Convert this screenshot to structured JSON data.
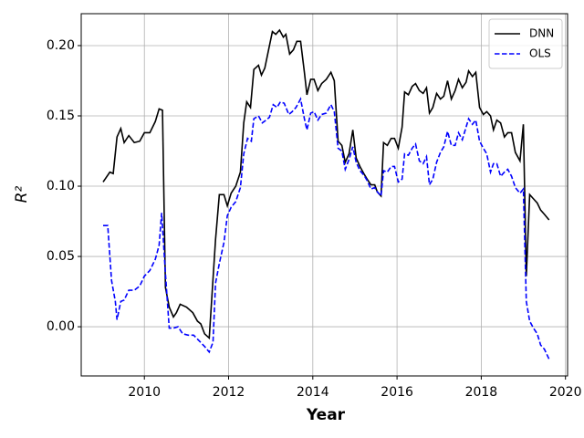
{
  "chart_data": {
    "type": "line",
    "x_label": "Year",
    "y_label": "R²",
    "xlim": [
      2008.5,
      2020.05
    ],
    "ylim": [
      -0.035,
      0.2227
    ],
    "xticks": [
      2010,
      2012,
      2014,
      2016,
      2018,
      2020
    ],
    "yticks": [
      {
        "value": 0,
        "label": "0.00"
      },
      0.05,
      {
        "value": 0.1,
        "label": "0.10"
      },
      0.15,
      {
        "value": 0.2,
        "label": "0.20"
      }
    ],
    "grid": true,
    "legend": "upper right",
    "series": [
      {
        "name": "DNN",
        "color": "#000000",
        "dash": false,
        "x": [
          2009.02,
          2009.18,
          2009.26,
          2009.35,
          2009.44,
          2009.52,
          2009.63,
          2009.76,
          2009.89,
          2010.0,
          2010.13,
          2010.26,
          2010.35,
          2010.43,
          2010.5,
          2010.59,
          2010.69,
          2010.76,
          2010.85,
          2011.0,
          2011.15,
          2011.26,
          2011.34,
          2011.43,
          2011.54,
          2011.63,
          2011.69,
          2011.78,
          2011.89,
          2011.97,
          2012.06,
          2012.17,
          2012.28,
          2012.36,
          2012.43,
          2012.52,
          2012.6,
          2012.71,
          2012.78,
          2012.86,
          2012.95,
          2013.04,
          2013.12,
          2013.21,
          2013.3,
          2013.36,
          2013.45,
          2013.54,
          2013.62,
          2013.71,
          2013.8,
          2013.86,
          2013.95,
          2014.03,
          2014.12,
          2014.21,
          2014.32,
          2014.43,
          2014.51,
          2014.6,
          2014.69,
          2014.77,
          2014.86,
          2014.95,
          2015.03,
          2015.12,
          2015.21,
          2015.29,
          2015.38,
          2015.47,
          2015.53,
          2015.62,
          2015.68,
          2015.77,
          2015.86,
          2015.94,
          2016.03,
          2016.12,
          2016.18,
          2016.27,
          2016.36,
          2016.44,
          2016.53,
          2016.62,
          2016.7,
          2016.77,
          2016.85,
          2016.94,
          2017.03,
          2017.11,
          2017.2,
          2017.29,
          2017.38,
          2017.46,
          2017.55,
          2017.64,
          2017.7,
          2017.79,
          2017.87,
          2017.96,
          2018.05,
          2018.13,
          2018.22,
          2018.29,
          2018.37,
          2018.46,
          2018.55,
          2018.63,
          2018.72,
          2018.81,
          2018.92,
          2019.0,
          2019.07,
          2019.15,
          2019.24,
          2019.33,
          2019.41,
          2019.5,
          2019.61
        ],
        "values": [
          0.103,
          0.11,
          0.109,
          0.135,
          0.141,
          0.131,
          0.136,
          0.131,
          0.132,
          0.138,
          0.138,
          0.146,
          0.155,
          0.154,
          0.028,
          0.014,
          0.007,
          0.01,
          0.016,
          0.014,
          0.01,
          0.004,
          0.002,
          -0.005,
          -0.008,
          0.034,
          0.062,
          0.094,
          0.094,
          0.086,
          0.095,
          0.1,
          0.11,
          0.145,
          0.16,
          0.156,
          0.183,
          0.186,
          0.179,
          0.184,
          0.197,
          0.21,
          0.208,
          0.211,
          0.206,
          0.208,
          0.194,
          0.197,
          0.203,
          0.203,
          0.181,
          0.165,
          0.176,
          0.176,
          0.168,
          0.173,
          0.176,
          0.181,
          0.175,
          0.132,
          0.129,
          0.117,
          0.123,
          0.14,
          0.12,
          0.114,
          0.109,
          0.105,
          0.101,
          0.101,
          0.096,
          0.093,
          0.131,
          0.129,
          0.134,
          0.134,
          0.127,
          0.142,
          0.167,
          0.165,
          0.171,
          0.173,
          0.168,
          0.166,
          0.17,
          0.152,
          0.156,
          0.166,
          0.162,
          0.164,
          0.175,
          0.162,
          0.168,
          0.176,
          0.17,
          0.174,
          0.182,
          0.178,
          0.181,
          0.156,
          0.151,
          0.153,
          0.15,
          0.14,
          0.147,
          0.145,
          0.135,
          0.138,
          0.138,
          0.124,
          0.118,
          0.144,
          0.036,
          0.094,
          0.091,
          0.088,
          0.083,
          0.08,
          0.076
        ]
      },
      {
        "name": "OLS",
        "color": "#0000ff",
        "dash": true,
        "x": [
          2009.02,
          2009.13,
          2009.22,
          2009.31,
          2009.35,
          2009.44,
          2009.52,
          2009.63,
          2009.76,
          2009.89,
          2010.0,
          2010.13,
          2010.26,
          2010.35,
          2010.41,
          2010.5,
          2010.59,
          2010.69,
          2010.8,
          2010.91,
          2011.04,
          2011.17,
          2011.3,
          2011.43,
          2011.54,
          2011.63,
          2011.69,
          2011.78,
          2011.89,
          2011.97,
          2012.06,
          2012.17,
          2012.28,
          2012.36,
          2012.45,
          2012.54,
          2012.6,
          2012.71,
          2012.8,
          2012.89,
          2012.97,
          2013.06,
          2013.15,
          2013.23,
          2013.32,
          2013.43,
          2013.51,
          2013.6,
          2013.71,
          2013.8,
          2013.86,
          2013.95,
          2014.03,
          2014.12,
          2014.21,
          2014.32,
          2014.43,
          2014.51,
          2014.6,
          2014.69,
          2014.77,
          2014.86,
          2014.95,
          2015.03,
          2015.12,
          2015.21,
          2015.29,
          2015.38,
          2015.47,
          2015.53,
          2015.62,
          2015.68,
          2015.77,
          2015.86,
          2015.94,
          2016.03,
          2016.12,
          2016.18,
          2016.27,
          2016.36,
          2016.44,
          2016.53,
          2016.62,
          2016.7,
          2016.77,
          2016.85,
          2016.94,
          2017.03,
          2017.11,
          2017.2,
          2017.29,
          2017.38,
          2017.46,
          2017.55,
          2017.64,
          2017.7,
          2017.79,
          2017.87,
          2017.96,
          2018.05,
          2018.13,
          2018.22,
          2018.29,
          2018.37,
          2018.46,
          2018.55,
          2018.63,
          2018.72,
          2018.81,
          2018.92,
          2019.0,
          2019.07,
          2019.15,
          2019.24,
          2019.33,
          2019.41,
          2019.5,
          2019.61
        ],
        "values": [
          0.072,
          0.072,
          0.033,
          0.018,
          0.005,
          0.018,
          0.019,
          0.026,
          0.026,
          0.029,
          0.036,
          0.04,
          0.048,
          0.058,
          0.081,
          0.038,
          -0.001,
          -0.001,
          0.0,
          -0.005,
          -0.006,
          -0.006,
          -0.01,
          -0.014,
          -0.018,
          -0.011,
          0.031,
          0.045,
          0.06,
          0.079,
          0.085,
          0.089,
          0.099,
          0.123,
          0.134,
          0.132,
          0.148,
          0.15,
          0.145,
          0.147,
          0.149,
          0.158,
          0.156,
          0.16,
          0.159,
          0.151,
          0.153,
          0.156,
          0.162,
          0.148,
          0.14,
          0.152,
          0.153,
          0.147,
          0.151,
          0.152,
          0.158,
          0.153,
          0.127,
          0.125,
          0.112,
          0.119,
          0.128,
          0.117,
          0.111,
          0.108,
          0.104,
          0.098,
          0.099,
          0.096,
          0.093,
          0.111,
          0.11,
          0.114,
          0.114,
          0.103,
          0.105,
          0.123,
          0.122,
          0.127,
          0.13,
          0.118,
          0.116,
          0.121,
          0.101,
          0.105,
          0.117,
          0.124,
          0.128,
          0.139,
          0.129,
          0.129,
          0.138,
          0.133,
          0.142,
          0.148,
          0.144,
          0.147,
          0.132,
          0.127,
          0.123,
          0.11,
          0.116,
          0.116,
          0.107,
          0.11,
          0.112,
          0.107,
          0.099,
          0.095,
          0.098,
          0.018,
          0.004,
          -0.001,
          -0.005,
          -0.013,
          -0.016,
          -0.023
        ]
      }
    ]
  }
}
